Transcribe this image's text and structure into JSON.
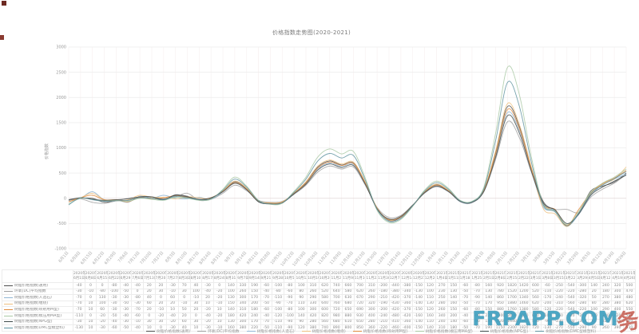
{
  "title": "价格指数走势图(2020-2021)",
  "watermark": {
    "text": "FRPAPP.COM",
    "seal": "务"
  },
  "chart_data": {
    "type": "line",
    "title": "价格指数走势图(2020-2021)",
    "ylabel": "价格指数",
    "xlabel": "",
    "ylim": [
      -1000,
      3000
    ],
    "ytick_step": 500,
    "grid": true,
    "legend_position": "left-table-and-bottom",
    "categories": [
      "6月1日",
      "6月8日",
      "6月15日",
      "6月22日",
      "6月29日",
      "7月6日",
      "7月13日",
      "7月20日",
      "7月27日",
      "8月3日",
      "8月10日",
      "8月17日",
      "8月24日",
      "8月31日",
      "9月7日",
      "9月14日",
      "9月21日",
      "9月28日",
      "10月5日",
      "10月12日",
      "10月19日",
      "10月26日",
      "11月2日",
      "11月9日",
      "11月16日",
      "11月23日",
      "11月30日",
      "12月7日",
      "12月14日",
      "12月21日",
      "12月28日",
      "1月4日",
      "1月11日",
      "1月18日",
      "1月25日",
      "2月1日",
      "2月8日",
      "2月15日",
      "2月22日",
      "3月1日",
      "3月8日",
      "3月15日",
      "3月22日",
      "3月29日",
      "4月5日",
      "4月12日",
      "4月19日",
      "4月26日"
    ],
    "table_headers": [
      "2020年6月1日",
      "2020年6月8日",
      "2020年6月15日",
      "2020年6月22日",
      "2020年6月29日",
      "2020年7月6日",
      "2020年7月13日",
      "2020年7月20日",
      "2020年7月27日",
      "2020年8月3日",
      "2020年8月10日",
      "2020年8月17日",
      "2020年8月24日",
      "2020年8月31日",
      "2020年9月7日",
      "2020年9月14日",
      "2020年9月21日",
      "2020年9月28日",
      "2020年10月5日",
      "2020年10月12日",
      "2020年10月19日",
      "2020年10月26日",
      "2020年11月2日",
      "2020年11月9日",
      "2020年11月16日",
      "2020年11月23日",
      "2020年11月30日",
      "2020年12月7日",
      "2020年12月14日",
      "2020年12月21日",
      "2020年12月28日",
      "2021年1月4日",
      "2021年1月11日",
      "2021年1月18日",
      "2021年1月25日",
      "2021年2月1日",
      "2021年2月8日",
      "2021年2月15日",
      "2021年2月22日",
      "2021年3月1日",
      "2021年3月8日",
      "2021年3月15日",
      "2021年3月22日",
      "2021年3月29日",
      "2021年4月5日",
      "2021年4月12日",
      "2021年4月19日",
      "2021年4月26日"
    ],
    "series": [
      {
        "name": "树脂价格指数(通用)",
        "color": "#4d4d4d",
        "values": [
          -40,
          0,
          0,
          -80,
          -40,
          -40,
          20,
          20,
          -30,
          70,
          40,
          -30,
          0,
          140,
          330,
          190,
          -60,
          -100,
          -80,
          100,
          310,
          620,
          740,
          660,
          700,
          310,
          -200,
          -440,
          -380,
          -150,
          120,
          270,
          150,
          -60,
          -80,
          160,
          920,
          1820,
          1420,
          600,
          -60,
          -250,
          -540,
          -300,
          140,
          240,
          320,
          500
        ]
      },
      {
        "name": "环氧(DC)平均指数",
        "color": "#9e9e9e",
        "values": [
          -30,
          -10,
          -80,
          -100,
          -50,
          0,
          20,
          30,
          -10,
          30,
          100,
          -40,
          -20,
          100,
          260,
          150,
          -40,
          -80,
          -60,
          80,
          260,
          520,
          640,
          580,
          620,
          260,
          -180,
          -380,
          -340,
          -130,
          100,
          230,
          130,
          -50,
          -70,
          130,
          780,
          1520,
          1200,
          520,
          -110,
          -220,
          -220,
          -280,
          20,
          180,
          300,
          470
        ]
      },
      {
        "name": "树脂价格指数(人造石)",
        "color": "#92b6d5",
        "values": [
          -70,
          0,
          130,
          -30,
          -30,
          -80,
          40,
          0,
          60,
          0,
          -10,
          20,
          -20,
          130,
          300,
          170,
          -70,
          -110,
          -90,
          90,
          290,
          580,
          700,
          630,
          670,
          290,
          -210,
          -420,
          -370,
          -140,
          110,
          250,
          140,
          -70,
          -90,
          140,
          860,
          1700,
          1340,
          560,
          -170,
          -240,
          -540,
          -320,
          50,
          270,
          380,
          480
        ]
      },
      {
        "name": "树脂价格指数(缠绕)",
        "color": "#eebf7e",
        "values": [
          -70,
          10,
          100,
          -30,
          -50,
          -30,
          60,
          20,
          20,
          -10,
          30,
          10,
          -10,
          150,
          340,
          200,
          -50,
          -90,
          -70,
          110,
          330,
          640,
          760,
          680,
          720,
          320,
          -190,
          -430,
          -360,
          -140,
          130,
          280,
          160,
          -50,
          -70,
          170,
          950,
          1880,
          1460,
          620,
          -200,
          -310,
          -560,
          -280,
          80,
          280,
          380,
          620
        ]
      },
      {
        "name": "树脂价格指数(喷射用M型)",
        "color": "#e08a3c",
        "values": [
          -70,
          10,
          60,
          -30,
          -30,
          -70,
          20,
          -10,
          10,
          50,
          20,
          -20,
          10,
          140,
          310,
          180,
          -60,
          -100,
          -80,
          100,
          300,
          600,
          720,
          650,
          690,
          300,
          -200,
          -420,
          -370,
          -150,
          120,
          260,
          150,
          -60,
          -80,
          150,
          880,
          1760,
          1380,
          580,
          -120,
          -220,
          -540,
          -220,
          100,
          290,
          400,
          550
        ]
      },
      {
        "name": "树脂价格指数(模压用MA型)",
        "color": "#a9c9a4",
        "values": [
          -110,
          0,
          -20,
          -50,
          -40,
          -60,
          0,
          -20,
          -40,
          20,
          0,
          -40,
          -20,
          180,
          420,
          240,
          -40,
          -120,
          -100,
          140,
          420,
          820,
          980,
          880,
          930,
          400,
          -240,
          -480,
          -420,
          -160,
          160,
          340,
          200,
          -40,
          -60,
          220,
          1300,
          2600,
          2050,
          820,
          -100,
          -260,
          -520,
          -260,
          120,
          300,
          420,
          580
        ]
      },
      {
        "name": "树脂价格指数(NPG型)",
        "color": "#3f4a4a",
        "values": [
          -30,
          10,
          -20,
          -40,
          -30,
          -10,
          30,
          30,
          -20,
          60,
          30,
          -20,
          10,
          130,
          300,
          170,
          -70,
          -110,
          -90,
          90,
          280,
          560,
          680,
          610,
          650,
          280,
          -210,
          -410,
          -360,
          -140,
          110,
          240,
          140,
          -60,
          -80,
          140,
          820,
          1640,
          1290,
          540,
          -90,
          -230,
          -500,
          -310,
          60,
          220,
          340,
          460
        ]
      },
      {
        "name": "树脂价格指数(DMC型模塑料)",
        "color": "#5f93a0",
        "values": [
          -130,
          10,
          -30,
          -60,
          -50,
          -40,
          10,
          0,
          -30,
          40,
          10,
          -30,
          -10,
          160,
          380,
          220,
          -50,
          -110,
          -90,
          120,
          380,
          740,
          890,
          800,
          850,
          360,
          -220,
          -460,
          -400,
          -150,
          140,
          310,
          180,
          -50,
          -70,
          190,
          1150,
          2300,
          1820,
          720,
          -130,
          -270,
          -550,
          -290,
          90,
          260,
          390,
          530
        ]
      }
    ]
  }
}
